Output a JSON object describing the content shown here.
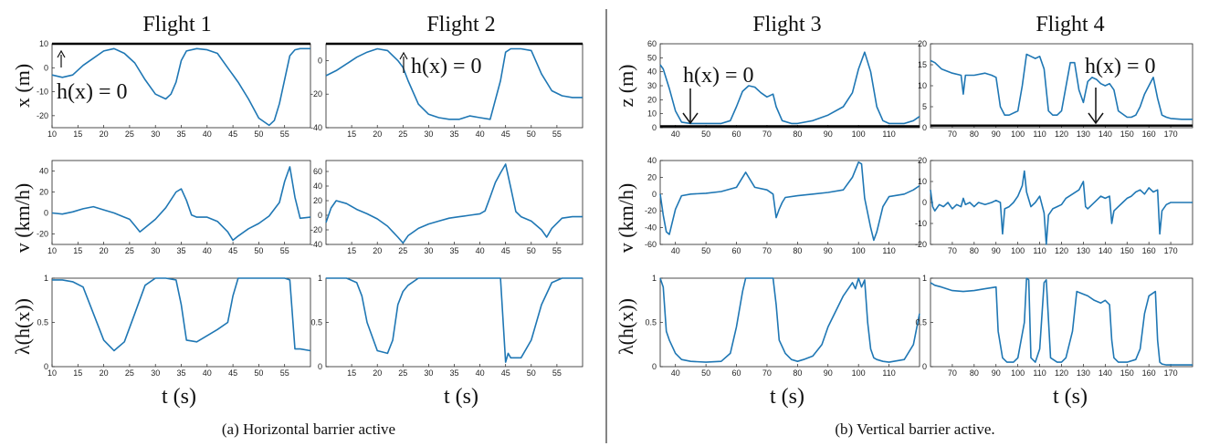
{
  "captions": {
    "a": "(a) Horizontal barrier active",
    "b": "(b) Vertical barrier active."
  },
  "flight_titles": [
    "Flight 1",
    "Flight 2",
    "Flight 3",
    "Flight 4"
  ],
  "xlabel": "t (s)",
  "row_labels": {
    "x": "x (m)",
    "z": "z (m)",
    "v": "v (km/h)",
    "lambda": "λ(h(x))"
  },
  "annotation_text": "h(x) = 0",
  "colors": {
    "line": "#1f77b4",
    "barrier": "#000000",
    "axis": "#222222"
  },
  "chart_data": [
    {
      "type": "line",
      "flight": "Flight 1",
      "row": "position",
      "ylabel": "x (m)",
      "xlim": [
        10,
        60
      ],
      "ylim": [
        -25,
        10
      ],
      "xticks": [
        10,
        15,
        20,
        25,
        30,
        35,
        40,
        45,
        50,
        55
      ],
      "yticks": [
        -20,
        -10,
        0,
        10
      ],
      "barrier": 10,
      "x": [
        10,
        12,
        14,
        16,
        18,
        20,
        22,
        24,
        26,
        28,
        30,
        32,
        33,
        34,
        35,
        36,
        38,
        40,
        42,
        44,
        46,
        48,
        50,
        52,
        53,
        54,
        56,
        57,
        58,
        60
      ],
      "y": [
        -3,
        -4,
        -3,
        1,
        4,
        7,
        8,
        6,
        2,
        -5,
        -11,
        -13,
        -11,
        -6,
        3,
        7,
        8,
        7.5,
        6,
        0,
        -6,
        -13,
        -21,
        -24,
        -22,
        -15,
        5,
        7.5,
        8,
        8
      ]
    },
    {
      "type": "line",
      "flight": "Flight 2",
      "row": "position",
      "ylabel": "x (m)",
      "xlim": [
        10,
        60
      ],
      "ylim": [
        -40,
        10
      ],
      "xticks": [
        15,
        20,
        25,
        30,
        35,
        40,
        45,
        50,
        55
      ],
      "yticks": [
        -40,
        -20,
        0
      ],
      "barrier": 10,
      "x": [
        10,
        12,
        14,
        16,
        18,
        20,
        22,
        24,
        25,
        26,
        28,
        30,
        32,
        34,
        36,
        38,
        40,
        42,
        44,
        45,
        46,
        48,
        50,
        52,
        54,
        56,
        58,
        60
      ],
      "y": [
        -9,
        -6,
        -2,
        2,
        5,
        7,
        6,
        0,
        -4,
        -12,
        -26,
        -32,
        -34,
        -35,
        -35,
        -33,
        -34,
        -35,
        -12,
        5,
        7,
        7,
        6,
        -8,
        -18,
        -21,
        -22,
        -22
      ]
    },
    {
      "type": "line",
      "flight": "Flight 3",
      "row": "position",
      "ylabel": "z (m)",
      "xlim": [
        35,
        120
      ],
      "ylim": [
        0,
        60
      ],
      "xticks": [
        40,
        50,
        60,
        70,
        80,
        90,
        100,
        110
      ],
      "yticks": [
        0,
        10,
        20,
        30,
        40,
        50,
        60
      ],
      "barrier": 1,
      "x": [
        35,
        36,
        38,
        40,
        42,
        45,
        50,
        55,
        58,
        60,
        62,
        64,
        66,
        68,
        70,
        72,
        73,
        75,
        78,
        80,
        85,
        90,
        95,
        98,
        100,
        102,
        104,
        106,
        108,
        110,
        115,
        118,
        120
      ],
      "y": [
        45,
        42,
        28,
        12,
        4,
        3,
        3,
        3,
        5,
        15,
        26,
        30,
        29,
        25,
        22,
        24,
        15,
        5,
        3,
        3,
        5,
        9,
        15,
        25,
        42,
        54,
        40,
        15,
        5,
        3,
        3,
        5,
        8
      ]
    },
    {
      "type": "line",
      "flight": "Flight 4",
      "row": "position",
      "ylabel": "z (m)",
      "xlim": [
        60,
        180
      ],
      "ylim": [
        0,
        20
      ],
      "xticks": [
        70,
        80,
        90,
        100,
        110,
        120,
        130,
        140,
        150,
        160,
        170
      ],
      "yticks": [
        0,
        5,
        10,
        15,
        20
      ],
      "barrier": 0.5,
      "x": [
        60,
        62,
        65,
        70,
        74,
        75,
        76,
        80,
        85,
        88,
        90,
        92,
        94,
        96,
        100,
        102,
        104,
        106,
        108,
        110,
        112,
        114,
        116,
        118,
        120,
        124,
        126,
        128,
        130,
        132,
        134,
        136,
        138,
        140,
        142,
        144,
        146,
        150,
        152,
        154,
        156,
        158,
        160,
        162,
        164,
        166,
        168,
        170,
        175,
        180
      ],
      "y": [
        16,
        15.5,
        14,
        13,
        12.5,
        8,
        12.5,
        12.5,
        13,
        12.5,
        12,
        5,
        3,
        3,
        4,
        10,
        17.5,
        17,
        16.5,
        17,
        14,
        4,
        3,
        3,
        4,
        15.5,
        15.5,
        9,
        6,
        11,
        12,
        11.5,
        10.5,
        10,
        10.5,
        9,
        4,
        2.5,
        2.5,
        3,
        5,
        8,
        10,
        12,
        7,
        3,
        2.5,
        2.2,
        2,
        2
      ]
    },
    {
      "type": "line",
      "flight": "Flight 1",
      "row": "velocity",
      "ylabel": "v (km/h)",
      "xlim": [
        10,
        60
      ],
      "ylim": [
        -30,
        50
      ],
      "xticks": [
        10,
        15,
        20,
        25,
        30,
        35,
        40,
        45,
        50,
        55
      ],
      "yticks": [
        -20,
        0,
        20,
        40
      ],
      "x": [
        10,
        12,
        14,
        16,
        18,
        20,
        22,
        24,
        25,
        26,
        27,
        28,
        30,
        32,
        34,
        35,
        36,
        37,
        38,
        40,
        42,
        44,
        45,
        46,
        48,
        50,
        52,
        54,
        55,
        56,
        57,
        58,
        60
      ],
      "y": [
        0,
        -1,
        1,
        4,
        6,
        3,
        0,
        -4,
        -6,
        -12,
        -18,
        -14,
        -6,
        5,
        20,
        23,
        12,
        -2,
        -4,
        -4,
        -8,
        -18,
        -26,
        -22,
        -15,
        -10,
        -3,
        10,
        30,
        44,
        15,
        -5,
        -4
      ]
    },
    {
      "type": "line",
      "flight": "Flight 2",
      "row": "velocity",
      "ylabel": "v (km/h)",
      "xlim": [
        10,
        60
      ],
      "ylim": [
        -40,
        75
      ],
      "xticks": [
        15,
        20,
        25,
        30,
        35,
        40,
        45,
        50,
        55
      ],
      "yticks": [
        -40,
        -20,
        0,
        20,
        40,
        60
      ],
      "x": [
        10,
        11,
        12,
        14,
        16,
        18,
        20,
        22,
        24,
        25,
        26,
        28,
        30,
        32,
        34,
        36,
        38,
        40,
        41,
        42,
        43,
        44,
        45,
        46,
        47,
        48,
        50,
        52,
        53,
        54,
        56,
        58,
        60
      ],
      "y": [
        -10,
        10,
        20,
        16,
        8,
        2,
        -5,
        -15,
        -30,
        -38,
        -28,
        -18,
        -12,
        -8,
        -4,
        -2,
        0,
        2,
        6,
        25,
        45,
        58,
        70,
        38,
        5,
        -2,
        -8,
        -20,
        -30,
        -18,
        -4,
        -2,
        -2
      ]
    },
    {
      "type": "line",
      "flight": "Flight 3",
      "row": "velocity",
      "ylabel": "v (km/h)",
      "xlim": [
        35,
        120
      ],
      "ylim": [
        -60,
        40
      ],
      "xticks": [
        40,
        50,
        60,
        70,
        80,
        90,
        100,
        110
      ],
      "yticks": [
        -60,
        -40,
        -20,
        0,
        20,
        40
      ],
      "x": [
        35,
        36,
        37,
        38,
        40,
        42,
        45,
        50,
        55,
        60,
        62,
        63,
        64,
        66,
        70,
        72,
        73,
        74,
        75,
        76,
        80,
        85,
        90,
        95,
        98,
        100,
        101,
        102,
        104,
        105,
        106,
        108,
        110,
        115,
        118,
        120
      ],
      "y": [
        0,
        -25,
        -45,
        -48,
        -18,
        -2,
        0,
        1,
        3,
        8,
        20,
        26,
        20,
        8,
        5,
        0,
        -28,
        -18,
        -10,
        -4,
        -2,
        0,
        2,
        5,
        20,
        38,
        36,
        -5,
        -40,
        -55,
        -45,
        -15,
        -3,
        0,
        5,
        10
      ]
    },
    {
      "type": "line",
      "flight": "Flight 4",
      "row": "velocity",
      "ylabel": "v (km/h)",
      "xlim": [
        60,
        180
      ],
      "ylim": [
        -20,
        20
      ],
      "xticks": [
        70,
        80,
        90,
        100,
        110,
        120,
        130,
        140,
        150,
        160,
        170
      ],
      "yticks": [
        -20,
        -10,
        0,
        10,
        20
      ],
      "x": [
        60,
        61,
        62,
        64,
        66,
        68,
        70,
        72,
        74,
        75,
        76,
        78,
        80,
        82,
        85,
        88,
        90,
        92,
        93,
        94,
        96,
        98,
        100,
        102,
        103,
        104,
        106,
        108,
        110,
        112,
        113,
        114,
        116,
        118,
        120,
        122,
        125,
        128,
        130,
        131,
        132,
        134,
        136,
        138,
        140,
        142,
        143,
        144,
        146,
        148,
        150,
        152,
        154,
        156,
        158,
        160,
        162,
        164,
        165,
        166,
        168,
        170,
        175,
        180
      ],
      "y": [
        6,
        -2,
        -4,
        -1,
        -2,
        0,
        -3,
        -1,
        -2,
        2,
        -1,
        0,
        -2,
        0,
        -1,
        0,
        1,
        0,
        -15,
        -3,
        -2,
        0,
        3,
        8,
        15,
        5,
        -2,
        0,
        3,
        -5,
        -20,
        -6,
        -3,
        -2,
        -1,
        2,
        4,
        6,
        10,
        -2,
        -3,
        -1,
        1,
        3,
        2,
        3,
        -10,
        -4,
        -2,
        0,
        2,
        3,
        5,
        6,
        4,
        7,
        5,
        6,
        -15,
        -4,
        -1,
        0,
        0,
        0
      ]
    },
    {
      "type": "line",
      "flight": "Flight 1",
      "row": "lambda",
      "ylabel": "λ(h(x))",
      "xlim": [
        10,
        60
      ],
      "ylim": [
        0,
        1
      ],
      "xticks": [
        10,
        15,
        20,
        25,
        30,
        35,
        40,
        45,
        50,
        55
      ],
      "yticks": [
        0,
        0.5,
        1
      ],
      "x": [
        10,
        12,
        14,
        16,
        18,
        20,
        22,
        24,
        26,
        28,
        30,
        32,
        34,
        35,
        36,
        38,
        40,
        42,
        44,
        45,
        46,
        48,
        50,
        52,
        54,
        55,
        56,
        57,
        58,
        60
      ],
      "y": [
        0.98,
        0.98,
        0.96,
        0.9,
        0.6,
        0.3,
        0.18,
        0.28,
        0.6,
        0.92,
        1,
        1,
        0.98,
        0.7,
        0.3,
        0.28,
        0.35,
        0.42,
        0.5,
        0.8,
        1,
        1,
        1,
        1,
        1,
        1,
        0.98,
        0.2,
        0.2,
        0.18
      ]
    },
    {
      "type": "line",
      "flight": "Flight 2",
      "row": "lambda",
      "ylabel": "λ(h(x))",
      "xlim": [
        10,
        60
      ],
      "ylim": [
        0,
        1
      ],
      "xticks": [
        15,
        20,
        25,
        30,
        35,
        40,
        45,
        50,
        55
      ],
      "yticks": [
        0,
        0.5,
        1
      ],
      "x": [
        10,
        12,
        14,
        16,
        17,
        18,
        20,
        22,
        23,
        24,
        25,
        26,
        28,
        30,
        35,
        40,
        44,
        45,
        45.5,
        46,
        48,
        50,
        52,
        54,
        56,
        58,
        60
      ],
      "y": [
        1,
        1,
        1,
        0.95,
        0.8,
        0.5,
        0.18,
        0.15,
        0.3,
        0.7,
        0.85,
        0.92,
        1,
        1,
        1,
        1,
        1,
        0.05,
        0.15,
        0.1,
        0.1,
        0.3,
        0.7,
        0.95,
        1,
        1,
        1
      ]
    },
    {
      "type": "line",
      "flight": "Flight 3",
      "row": "lambda",
      "ylabel": "λ(h(x))",
      "xlim": [
        35,
        120
      ],
      "ylim": [
        0,
        1
      ],
      "xticks": [
        40,
        50,
        60,
        70,
        80,
        90,
        100,
        110
      ],
      "yticks": [
        0,
        0.5,
        1
      ],
      "x": [
        35,
        36,
        37,
        38,
        40,
        42,
        45,
        50,
        55,
        58,
        60,
        62,
        63,
        65,
        70,
        72,
        73,
        74,
        76,
        78,
        80,
        82,
        85,
        88,
        90,
        95,
        98,
        99,
        100,
        101,
        102,
        103,
        104,
        105,
        106,
        108,
        110,
        115,
        118,
        120
      ],
      "y": [
        1,
        0.9,
        0.4,
        0.3,
        0.15,
        0.08,
        0.06,
        0.05,
        0.06,
        0.15,
        0.45,
        0.85,
        1,
        1,
        1,
        1,
        0.7,
        0.3,
        0.15,
        0.08,
        0.06,
        0.08,
        0.12,
        0.25,
        0.45,
        0.8,
        0.95,
        0.88,
        1,
        0.9,
        0.98,
        0.5,
        0.2,
        0.1,
        0.08,
        0.06,
        0.05,
        0.08,
        0.25,
        0.6
      ]
    },
    {
      "type": "line",
      "flight": "Flight 4",
      "row": "lambda",
      "ylabel": "λ(h(x))",
      "xlim": [
        60,
        180
      ],
      "ylim": [
        0,
        1
      ],
      "xticks": [
        70,
        80,
        90,
        100,
        110,
        120,
        130,
        140,
        150,
        160,
        170
      ],
      "yticks": [
        0,
        0.5,
        1
      ],
      "x": [
        60,
        62,
        65,
        70,
        75,
        80,
        85,
        90,
        91,
        93,
        95,
        98,
        100,
        103,
        104,
        105,
        106,
        108,
        110,
        112,
        113,
        115,
        118,
        120,
        122,
        125,
        127,
        130,
        132,
        135,
        138,
        140,
        142,
        143,
        144,
        146,
        150,
        154,
        156,
        158,
        160,
        163,
        164,
        165,
        166,
        168,
        170,
        175,
        180
      ],
      "y": [
        0.95,
        0.92,
        0.9,
        0.86,
        0.85,
        0.86,
        0.88,
        0.9,
        0.4,
        0.1,
        0.05,
        0.05,
        0.1,
        0.5,
        1,
        0.98,
        0.1,
        0.05,
        0.2,
        0.95,
        0.98,
        0.1,
        0.05,
        0.05,
        0.1,
        0.4,
        0.85,
        0.82,
        0.8,
        0.75,
        0.72,
        0.75,
        0.7,
        0.3,
        0.1,
        0.05,
        0.05,
        0.08,
        0.2,
        0.6,
        0.8,
        0.85,
        0.3,
        0.05,
        0.03,
        0.02,
        0.02,
        0.02,
        0.02
      ]
    }
  ]
}
